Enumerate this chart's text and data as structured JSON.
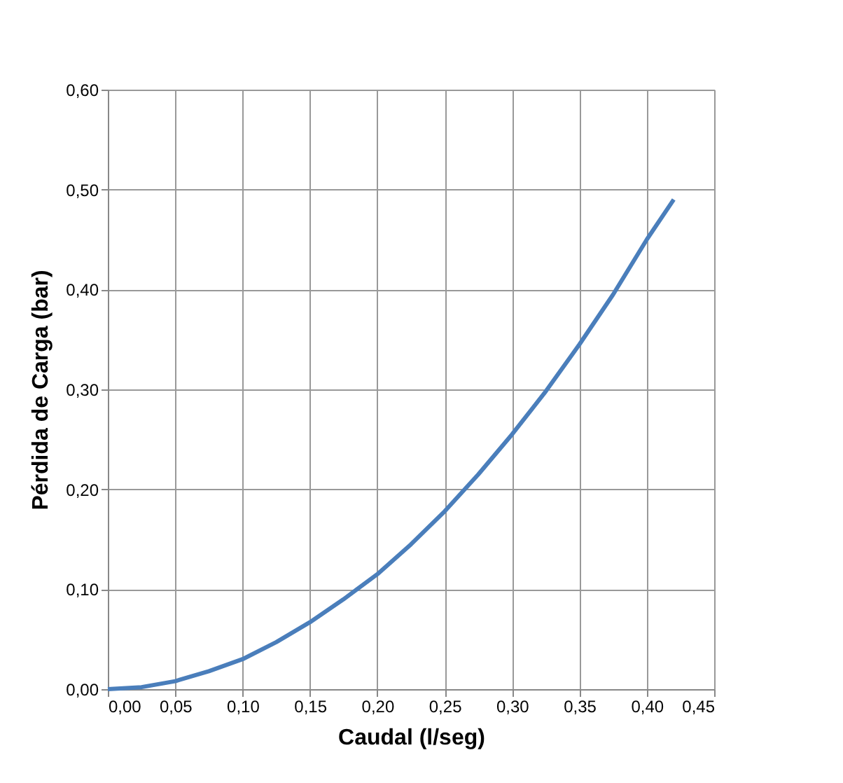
{
  "chart_data": {
    "type": "line",
    "xlabel": "Caudal (l/seg)",
    "ylabel": "Pérdida de Carga (bar)",
    "x": [
      0.0,
      0.025,
      0.05,
      0.075,
      0.1,
      0.125,
      0.15,
      0.175,
      0.2,
      0.225,
      0.25,
      0.275,
      0.3,
      0.325,
      0.35,
      0.375,
      0.4,
      0.42
    ],
    "series": [
      {
        "color": "#4a7ebb",
        "values": [
          0.0,
          0.002,
          0.008,
          0.018,
          0.03,
          0.047,
          0.067,
          0.09,
          0.115,
          0.145,
          0.178,
          0.215,
          0.255,
          0.298,
          0.345,
          0.395,
          0.45,
          0.49
        ]
      }
    ],
    "xlim": [
      0,
      0.45
    ],
    "ylim": [
      0,
      0.6
    ],
    "xticks": [
      {
        "value": 0,
        "label": "0,00"
      },
      {
        "value": 0.05,
        "label": "0,05"
      },
      {
        "value": 0.1,
        "label": "0,10"
      },
      {
        "value": 0.15,
        "label": "0,15"
      },
      {
        "value": 0.2,
        "label": "0,20"
      },
      {
        "value": 0.25,
        "label": "0,25"
      },
      {
        "value": 0.3,
        "label": "0,30"
      },
      {
        "value": 0.35,
        "label": "0,35"
      },
      {
        "value": 0.4,
        "label": "0,40"
      },
      {
        "value": 0.45,
        "label": "0,45"
      }
    ],
    "yticks": [
      {
        "value": 0,
        "label": "0,00"
      },
      {
        "value": 0.1,
        "label": "0,10"
      },
      {
        "value": 0.2,
        "label": "0,20"
      },
      {
        "value": 0.3,
        "label": "0,30"
      },
      {
        "value": 0.4,
        "label": "0,40"
      },
      {
        "value": 0.5,
        "label": "0,50"
      },
      {
        "value": 0.6,
        "label": "0,60"
      }
    ],
    "grid": true,
    "marker": "none",
    "line_style": "solid"
  }
}
